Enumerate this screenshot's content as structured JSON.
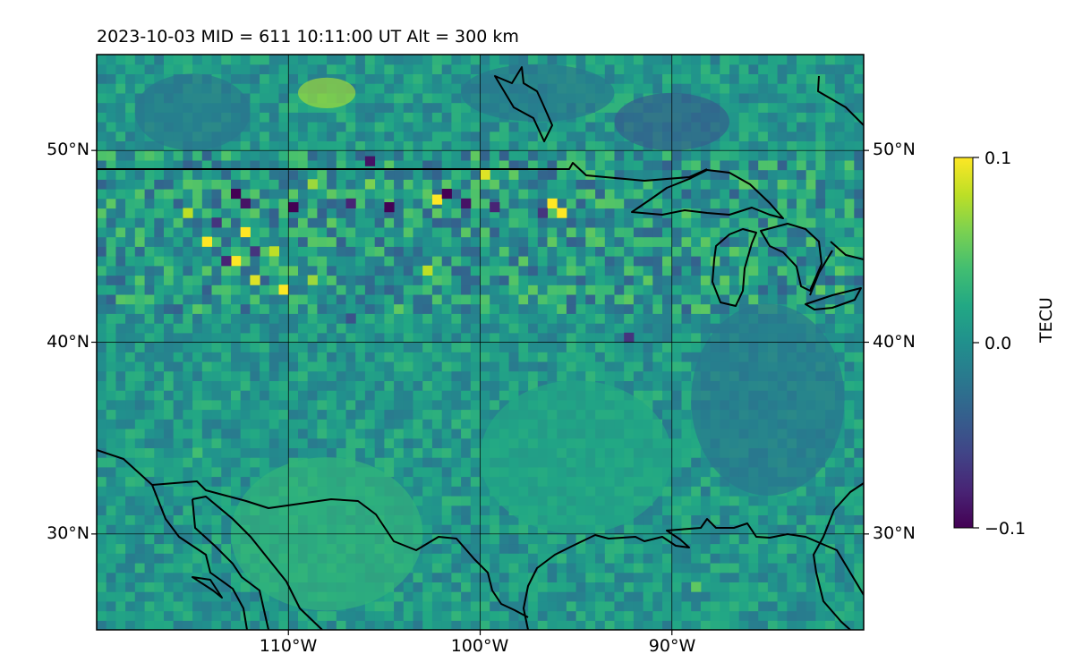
{
  "title": "2023-10-03  MID = 611    10:11:00  UT  Alt = 300 km",
  "map": {
    "extent": {
      "lon": [
        -120,
        -80
      ],
      "lat": [
        25,
        55
      ]
    },
    "gridlines": {
      "lons": [
        -110,
        -100,
        -90
      ],
      "lats": [
        30,
        40,
        50
      ]
    },
    "lon_labels": [
      {
        "lon": -110,
        "text": "110°W"
      },
      {
        "lon": -100,
        "text": "100°W"
      },
      {
        "lon": -90,
        "text": "90°W"
      }
    ],
    "lat_labels": [
      {
        "lat": 50,
        "text": "50°N"
      },
      {
        "lat": 40,
        "text": "40°N"
      },
      {
        "lat": 30,
        "text": "30°N"
      }
    ],
    "background_color": "#21908d",
    "cell_size_deg": 0.5,
    "anomalies": [
      {
        "lon": -114.5,
        "lat": 45,
        "v": 0.1
      },
      {
        "lon": -113,
        "lat": 44,
        "v": 0.1
      },
      {
        "lon": -112.5,
        "lat": 45.5,
        "v": 0.1
      },
      {
        "lon": -112,
        "lat": 43,
        "v": 0.09
      },
      {
        "lon": -110.5,
        "lat": 42.5,
        "v": 0.1
      },
      {
        "lon": -111,
        "lat": 44.5,
        "v": 0.08
      },
      {
        "lon": -109,
        "lat": 43,
        "v": 0.07
      },
      {
        "lon": -103,
        "lat": 43.5,
        "v": 0.08
      },
      {
        "lon": -102.5,
        "lat": 47.2,
        "v": 0.1
      },
      {
        "lon": -100,
        "lat": 48.5,
        "v": 0.09
      },
      {
        "lon": -96.5,
        "lat": 47,
        "v": 0.1
      },
      {
        "lon": -96,
        "lat": 46.5,
        "v": 0.1
      },
      {
        "lon": -106,
        "lat": 48,
        "v": 0.06
      },
      {
        "lon": -109,
        "lat": 48,
        "v": 0.07
      },
      {
        "lon": -115.5,
        "lat": 46.5,
        "v": 0.08
      },
      {
        "lon": -113,
        "lat": 47.5,
        "v": -0.1
      },
      {
        "lon": -112.5,
        "lat": 47,
        "v": -0.09
      },
      {
        "lon": -110,
        "lat": 46.8,
        "v": -0.1
      },
      {
        "lon": -107,
        "lat": 47,
        "v": -0.08
      },
      {
        "lon": -105,
        "lat": 46.8,
        "v": -0.1
      },
      {
        "lon": -102,
        "lat": 47.5,
        "v": -0.1
      },
      {
        "lon": -101,
        "lat": 47,
        "v": -0.09
      },
      {
        "lon": -99.5,
        "lat": 46.8,
        "v": -0.08
      },
      {
        "lon": -97,
        "lat": 46.5,
        "v": -0.07
      },
      {
        "lon": -106,
        "lat": 49.2,
        "v": -0.09
      },
      {
        "lon": -114,
        "lat": 46,
        "v": -0.07
      },
      {
        "lon": -113.5,
        "lat": 44,
        "v": -0.08
      },
      {
        "lon": -112,
        "lat": 44.5,
        "v": -0.07
      },
      {
        "lon": -92.5,
        "lat": 40,
        "v": -0.07
      },
      {
        "lon": -107,
        "lat": 41,
        "v": -0.05
      },
      {
        "lon": -115,
        "lat": 34,
        "v": 0.04
      },
      {
        "lon": -89,
        "lat": 27,
        "v": 0.05
      },
      {
        "lon": -101,
        "lat": 35,
        "v": 0.03
      }
    ],
    "smooth_regions": [
      {
        "lon": -108,
        "lat": 53,
        "rx": 1.5,
        "ry": 0.8,
        "v": 0.07
      },
      {
        "lon": -90,
        "lat": 51.5,
        "rx": 3,
        "ry": 1.5,
        "v": -0.04
      },
      {
        "lon": -97,
        "lat": 53,
        "rx": 4,
        "ry": 1.5,
        "v": -0.02
      },
      {
        "lon": -115,
        "lat": 52,
        "rx": 3,
        "ry": 2,
        "v": -0.02
      },
      {
        "lon": -85,
        "lat": 37,
        "rx": 4,
        "ry": 5,
        "v": -0.02
      },
      {
        "lon": -108,
        "lat": 30,
        "rx": 5,
        "ry": 4,
        "v": 0.03
      },
      {
        "lon": -95,
        "lat": 34,
        "rx": 5,
        "ry": 4,
        "v": 0.02
      }
    ]
  },
  "colorbar": {
    "vmin": -0.1,
    "vmax": 0.1,
    "ticks": [
      "0.1",
      "0.0",
      "−0.1"
    ],
    "label": "TECU",
    "colormap": "viridis"
  }
}
